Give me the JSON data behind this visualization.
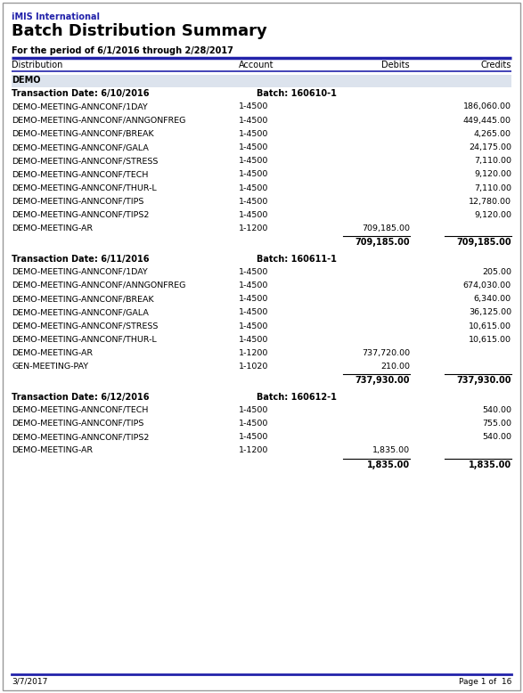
{
  "company": "iMIS International",
  "title": "Batch Distribution Summary",
  "period": "For the period of 6/1/2016 through 2/28/2017",
  "col_headers": [
    "Distribution",
    "Account",
    "Debits",
    "Credits"
  ],
  "footer_date": "3/7/2017",
  "footer_page": "Page 1 of  16",
  "blue_color": "#2222aa",
  "group_bg": "#dce3ed",
  "rows": [
    {
      "type": "group",
      "text": "DEMO"
    },
    {
      "type": "batch_header",
      "date": "Transaction Date: 6/10/2016",
      "batch": "Batch: 160610-1"
    },
    {
      "type": "data",
      "dist": "DEMO-MEETING-ANNCONF/1DAY",
      "acct": "1-4500",
      "debit": "",
      "credit": "186,060.00"
    },
    {
      "type": "data",
      "dist": "DEMO-MEETING-ANNCONF/ANNGONFREG",
      "acct": "1-4500",
      "debit": "",
      "credit": "449,445.00"
    },
    {
      "type": "data",
      "dist": "DEMO-MEETING-ANNCONF/BREAK",
      "acct": "1-4500",
      "debit": "",
      "credit": "4,265.00"
    },
    {
      "type": "data",
      "dist": "DEMO-MEETING-ANNCONF/GALA",
      "acct": "1-4500",
      "debit": "",
      "credit": "24,175.00"
    },
    {
      "type": "data",
      "dist": "DEMO-MEETING-ANNCONF/STRESS",
      "acct": "1-4500",
      "debit": "",
      "credit": "7,110.00"
    },
    {
      "type": "data",
      "dist": "DEMO-MEETING-ANNCONF/TECH",
      "acct": "1-4500",
      "debit": "",
      "credit": "9,120.00"
    },
    {
      "type": "data",
      "dist": "DEMO-MEETING-ANNCONF/THUR-L",
      "acct": "1-4500",
      "debit": "",
      "credit": "7,110.00"
    },
    {
      "type": "data",
      "dist": "DEMO-MEETING-ANNCONF/TIPS",
      "acct": "1-4500",
      "debit": "",
      "credit": "12,780.00"
    },
    {
      "type": "data",
      "dist": "DEMO-MEETING-ANNCONF/TIPS2",
      "acct": "1-4500",
      "debit": "",
      "credit": "9,120.00"
    },
    {
      "type": "data",
      "dist": "DEMO-MEETING-AR",
      "acct": "1-1200",
      "debit": "709,185.00",
      "credit": ""
    },
    {
      "type": "total",
      "debit": "709,185.00",
      "credit": "709,185.00"
    },
    {
      "type": "batch_header",
      "date": "Transaction Date: 6/11/2016",
      "batch": "Batch: 160611-1"
    },
    {
      "type": "data",
      "dist": "DEMO-MEETING-ANNCONF/1DAY",
      "acct": "1-4500",
      "debit": "",
      "credit": "205.00"
    },
    {
      "type": "data",
      "dist": "DEMO-MEETING-ANNCONF/ANNGONFREG",
      "acct": "1-4500",
      "debit": "",
      "credit": "674,030.00"
    },
    {
      "type": "data",
      "dist": "DEMO-MEETING-ANNCONF/BREAK",
      "acct": "1-4500",
      "debit": "",
      "credit": "6,340.00"
    },
    {
      "type": "data",
      "dist": "DEMO-MEETING-ANNCONF/GALA",
      "acct": "1-4500",
      "debit": "",
      "credit": "36,125.00"
    },
    {
      "type": "data",
      "dist": "DEMO-MEETING-ANNCONF/STRESS",
      "acct": "1-4500",
      "debit": "",
      "credit": "10,615.00"
    },
    {
      "type": "data",
      "dist": "DEMO-MEETING-ANNCONF/THUR-L",
      "acct": "1-4500",
      "debit": "",
      "credit": "10,615.00"
    },
    {
      "type": "data",
      "dist": "DEMO-MEETING-AR",
      "acct": "1-1200",
      "debit": "737,720.00",
      "credit": ""
    },
    {
      "type": "data",
      "dist": "GEN-MEETING-PAY",
      "acct": "1-1020",
      "debit": "210.00",
      "credit": ""
    },
    {
      "type": "total",
      "debit": "737,930.00",
      "credit": "737,930.00"
    },
    {
      "type": "batch_header",
      "date": "Transaction Date: 6/12/2016",
      "batch": "Batch: 160612-1"
    },
    {
      "type": "data",
      "dist": "DEMO-MEETING-ANNCONF/TECH",
      "acct": "1-4500",
      "debit": "",
      "credit": "540.00"
    },
    {
      "type": "data",
      "dist": "DEMO-MEETING-ANNCONF/TIPS",
      "acct": "1-4500",
      "debit": "",
      "credit": "755.00"
    },
    {
      "type": "data",
      "dist": "DEMO-MEETING-ANNCONF/TIPS2",
      "acct": "1-4500",
      "debit": "",
      "credit": "540.00"
    },
    {
      "type": "data",
      "dist": "DEMO-MEETING-AR",
      "acct": "1-1200",
      "debit": "1,835.00",
      "credit": ""
    },
    {
      "type": "total",
      "debit": "1,835.00",
      "credit": "1,835.00"
    }
  ]
}
